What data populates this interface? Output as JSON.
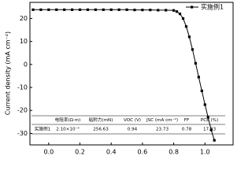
{
  "chart_data": {
    "type": "line",
    "y_label": "Current density (mA cm⁻²)",
    "x": [
      -0.1,
      -0.05,
      0.0,
      0.05,
      0.1,
      0.15,
      0.2,
      0.25,
      0.3,
      0.35,
      0.4,
      0.45,
      0.5,
      0.55,
      0.6,
      0.65,
      0.7,
      0.75,
      0.8,
      0.82,
      0.84,
      0.86,
      0.88,
      0.9,
      0.92,
      0.94,
      0.96,
      0.98,
      1.0,
      1.02,
      1.04,
      1.06
    ],
    "series": [
      {
        "name": "实施例1",
        "color": "#000000",
        "values": [
          23.8,
          23.8,
          23.8,
          23.8,
          23.8,
          23.8,
          23.8,
          23.8,
          23.8,
          23.8,
          23.8,
          23.8,
          23.8,
          23.7,
          23.7,
          23.7,
          23.6,
          23.6,
          23.5,
          23.0,
          22.0,
          20.0,
          16.5,
          12.0,
          6.5,
          0.5,
          -5.5,
          -11.5,
          -17.5,
          -23.0,
          -28.5,
          -33.0
        ]
      }
    ],
    "xlim": [
      -0.12,
      1.18
    ],
    "ylim": [
      -35,
      27
    ],
    "xticks": [
      {
        "value": 0,
        "label": "0.0"
      },
      0.2,
      0.4,
      0.6,
      0.8,
      {
        "value": 1,
        "label": "1.0"
      }
    ],
    "yticks": [
      20,
      10,
      0,
      -10,
      -20,
      -30
    ],
    "legend": "top-right",
    "table": {
      "columns": [
        "电阻率(Ω·m)",
        "粘附力(mN)",
        "VOC (V)",
        "JSC (mA cm⁻²)",
        "FF",
        "PCE (%)"
      ],
      "row_label": "实施例1",
      "row": [
        "2.10×10⁻⁴",
        "256.63",
        "0.94",
        "23.73",
        "0.78",
        "17.33"
      ]
    }
  }
}
